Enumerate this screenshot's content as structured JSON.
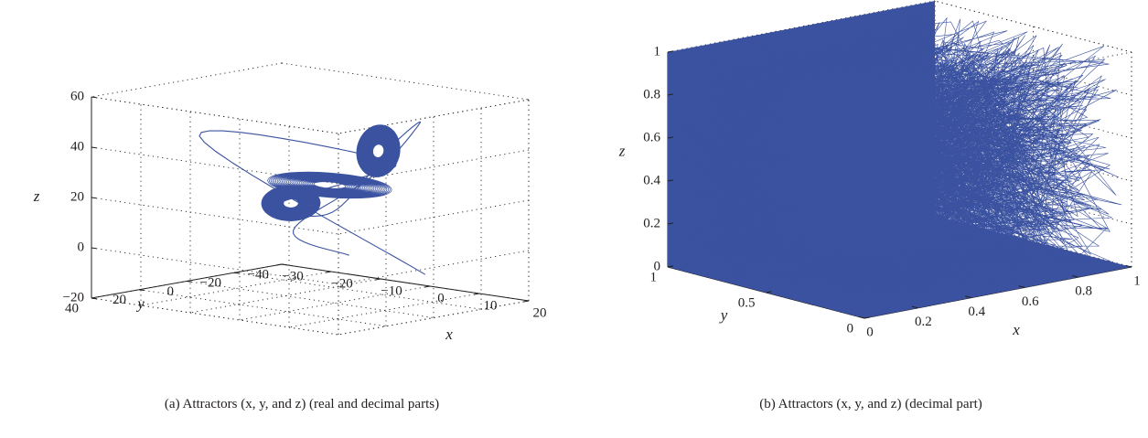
{
  "figure": {
    "captions": [
      {
        "text": "(a)  Attractors (x, y, and z) (real and decimal parts)"
      },
      {
        "text": "(b) Attractors (x, y, and z) (decimal part)"
      }
    ]
  },
  "chart_data": [
    {
      "type": "line3d",
      "panel": "a",
      "xlabel": "x",
      "ylabel": "y",
      "zlabel": "z",
      "xlim": [
        -30,
        20
      ],
      "ylim": [
        -40,
        40
      ],
      "zlim": [
        -20,
        60
      ],
      "xticks": [
        -30,
        -20,
        -10,
        0,
        10,
        20
      ],
      "yticks": [
        -40,
        -20,
        0,
        20,
        40
      ],
      "zticks": [
        -20,
        0,
        20,
        40,
        60
      ],
      "xtick_labels": [
        "−30",
        "−20",
        "−10",
        "0",
        "10",
        "20"
      ],
      "ytick_labels": [
        "−40",
        "−20",
        "0",
        "20",
        "40"
      ],
      "ztick_labels": [
        "−20",
        "0",
        "20",
        "40",
        "60"
      ],
      "grid": true,
      "series_color": "#3a52a0",
      "trajectory_points": [
        [
          0,
          -38,
          -15
        ],
        [
          -25,
          5,
          40
        ],
        [
          8,
          -6,
          38
        ],
        [
          4,
          2,
          30
        ],
        [
          -8,
          8,
          18
        ],
        [
          -2,
          -3,
          15
        ],
        [
          5,
          -14,
          42
        ],
        [
          10,
          -15,
          52
        ],
        [
          3,
          -10,
          30
        ],
        [
          -6,
          5,
          8
        ],
        [
          0,
          -6,
          -2
        ]
      ]
    },
    {
      "type": "line3d",
      "panel": "b",
      "xlabel": "x",
      "ylabel": "y",
      "zlabel": "z",
      "xlim": [
        0,
        1
      ],
      "ylim": [
        0,
        1
      ],
      "zlim": [
        0,
        1
      ],
      "xticks": [
        0,
        0.2,
        0.4,
        0.6,
        0.8,
        1
      ],
      "yticks": [
        0,
        0.5,
        1
      ],
      "zticks": [
        0,
        0.2,
        0.4,
        0.6,
        0.8,
        1
      ],
      "xtick_labels": [
        "0",
        "0.2",
        "0.4",
        "0.6",
        "0.8",
        "1"
      ],
      "ytick_labels": [
        "0",
        "0.5",
        "1"
      ],
      "ztick_labels": [
        "0",
        "0.2",
        "0.4",
        "0.6",
        "0.8",
        "1"
      ],
      "grid": true,
      "series_color": "#3a52a0",
      "trajectory": "dense random fill of the unit cube [0,1]^3"
    }
  ]
}
